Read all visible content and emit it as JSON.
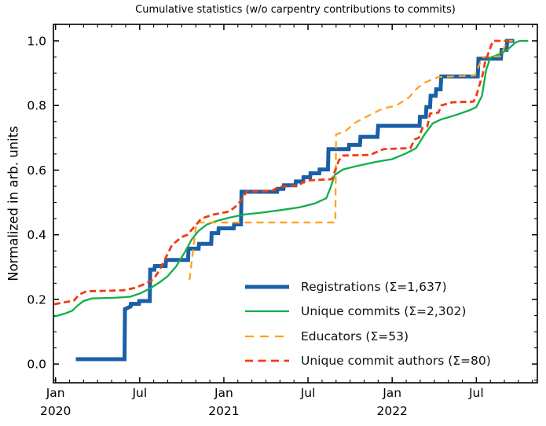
{
  "chart_data": {
    "type": "line",
    "title": "Cumulative statistics (w/o carpentry contributions to commits)",
    "xlabel": "",
    "ylabel": "Normalized in arb. units",
    "x_unit": "months since Jan 2020",
    "xlim": [
      -0.15,
      34.35
    ],
    "ylim": [
      -0.058,
      1.051
    ],
    "grid": false,
    "tick_style": "inward ticks on all four sides; minor ticks monthly on x and every 0.05 on y",
    "legend_position": "lower right inside, no frame",
    "xticks": [
      {
        "m": 0,
        "label": "Jan",
        "year": "2020"
      },
      {
        "m": 6,
        "label": "Jul",
        "year": ""
      },
      {
        "m": 12,
        "label": "Jan",
        "year": "2021"
      },
      {
        "m": 18,
        "label": "Jul",
        "year": ""
      },
      {
        "m": 24,
        "label": "Jan",
        "year": "2022"
      },
      {
        "m": 30,
        "label": "Jul",
        "year": ""
      }
    ],
    "xminor_step": 1,
    "yticks": [
      {
        "v": 0.0,
        "label": "0.0"
      },
      {
        "v": 0.2,
        "label": "0.2"
      },
      {
        "v": 0.4,
        "label": "0.4"
      },
      {
        "v": 0.6,
        "label": "0.6"
      },
      {
        "v": 0.8,
        "label": "0.8"
      },
      {
        "v": 1.0,
        "label": "1.0"
      }
    ],
    "yminor_step": 0.05,
    "series": [
      {
        "name": "Registrations  (Σ=1,637)",
        "color": "#1b5fa6",
        "width": 5,
        "dash": null,
        "points": [
          [
            1.45,
            0.015
          ],
          [
            4.92,
            0.015
          ],
          [
            4.95,
            0.17
          ],
          [
            5.35,
            0.178
          ],
          [
            5.37,
            0.186
          ],
          [
            5.95,
            0.186
          ],
          [
            5.97,
            0.195
          ],
          [
            6.72,
            0.195
          ],
          [
            6.75,
            0.292
          ],
          [
            7.05,
            0.292
          ],
          [
            7.08,
            0.303
          ],
          [
            7.85,
            0.303
          ],
          [
            7.88,
            0.322
          ],
          [
            9.45,
            0.322
          ],
          [
            9.48,
            0.357
          ],
          [
            10.2,
            0.357
          ],
          [
            10.23,
            0.372
          ],
          [
            11.1,
            0.372
          ],
          [
            11.13,
            0.405
          ],
          [
            11.6,
            0.405
          ],
          [
            11.63,
            0.42
          ],
          [
            12.7,
            0.42
          ],
          [
            12.73,
            0.432
          ],
          [
            13.22,
            0.432
          ],
          [
            13.26,
            0.533
          ],
          [
            15.8,
            0.533
          ],
          [
            15.83,
            0.542
          ],
          [
            16.25,
            0.542
          ],
          [
            16.28,
            0.553
          ],
          [
            17.1,
            0.553
          ],
          [
            17.13,
            0.565
          ],
          [
            17.65,
            0.565
          ],
          [
            17.68,
            0.578
          ],
          [
            18.15,
            0.578
          ],
          [
            18.18,
            0.59
          ],
          [
            18.8,
            0.59
          ],
          [
            18.83,
            0.602
          ],
          [
            19.42,
            0.602
          ],
          [
            19.46,
            0.665
          ],
          [
            20.9,
            0.665
          ],
          [
            20.93,
            0.678
          ],
          [
            21.7,
            0.678
          ],
          [
            21.74,
            0.703
          ],
          [
            22.95,
            0.703
          ],
          [
            23.0,
            0.737
          ],
          [
            25.95,
            0.737
          ],
          [
            25.98,
            0.765
          ],
          [
            26.4,
            0.765
          ],
          [
            26.44,
            0.795
          ],
          [
            26.7,
            0.795
          ],
          [
            26.74,
            0.83
          ],
          [
            27.1,
            0.83
          ],
          [
            27.14,
            0.85
          ],
          [
            27.45,
            0.85
          ],
          [
            27.5,
            0.89
          ],
          [
            30.1,
            0.89
          ],
          [
            30.15,
            0.945
          ],
          [
            31.75,
            0.945
          ],
          [
            31.8,
            0.972
          ],
          [
            32.15,
            0.972
          ],
          [
            32.2,
            1.0
          ],
          [
            32.7,
            1.0
          ]
        ]
      },
      {
        "name": "Unique commits (Σ=2,302)",
        "color": "#12ad4a",
        "width": 2.3,
        "dash": null,
        "points": [
          [
            -0.1,
            0.147
          ],
          [
            0.6,
            0.155
          ],
          [
            1.2,
            0.165
          ],
          [
            1.6,
            0.182
          ],
          [
            2.0,
            0.195
          ],
          [
            2.6,
            0.203
          ],
          [
            4.2,
            0.205
          ],
          [
            5.3,
            0.208
          ],
          [
            6.0,
            0.218
          ],
          [
            6.7,
            0.233
          ],
          [
            7.4,
            0.252
          ],
          [
            8.0,
            0.272
          ],
          [
            8.6,
            0.302
          ],
          [
            9.2,
            0.345
          ],
          [
            9.7,
            0.385
          ],
          [
            10.2,
            0.412
          ],
          [
            10.8,
            0.432
          ],
          [
            11.5,
            0.443
          ],
          [
            12.4,
            0.453
          ],
          [
            13.5,
            0.463
          ],
          [
            14.6,
            0.468
          ],
          [
            16.0,
            0.476
          ],
          [
            17.4,
            0.485
          ],
          [
            18.5,
            0.497
          ],
          [
            19.3,
            0.513
          ],
          [
            19.6,
            0.545
          ],
          [
            19.9,
            0.585
          ],
          [
            20.5,
            0.602
          ],
          [
            21.6,
            0.614
          ],
          [
            22.8,
            0.625
          ],
          [
            24.0,
            0.634
          ],
          [
            25.0,
            0.652
          ],
          [
            25.7,
            0.668
          ],
          [
            26.3,
            0.71
          ],
          [
            26.9,
            0.745
          ],
          [
            27.5,
            0.757
          ],
          [
            28.5,
            0.77
          ],
          [
            29.5,
            0.785
          ],
          [
            30.0,
            0.795
          ],
          [
            30.4,
            0.83
          ],
          [
            30.7,
            0.91
          ],
          [
            31.0,
            0.948
          ],
          [
            31.6,
            0.958
          ],
          [
            32.2,
            0.972
          ],
          [
            32.8,
            0.995
          ],
          [
            33.1,
            1.0
          ],
          [
            33.7,
            1.0
          ]
        ]
      },
      {
        "name": "Educators (Σ=53)",
        "color": "#ffa21f",
        "width": 2.3,
        "dash": [
          9,
          6
        ],
        "points": [
          [
            9.55,
            0.26
          ],
          [
            9.8,
            0.35
          ],
          [
            10.05,
            0.438
          ],
          [
            19.95,
            0.438
          ],
          [
            20.0,
            0.71
          ],
          [
            20.7,
            0.722
          ],
          [
            21.4,
            0.748
          ],
          [
            22.3,
            0.768
          ],
          [
            23.3,
            0.79
          ],
          [
            24.3,
            0.8
          ],
          [
            25.2,
            0.825
          ],
          [
            25.7,
            0.85
          ],
          [
            26.2,
            0.868
          ],
          [
            26.8,
            0.88
          ],
          [
            27.3,
            0.888
          ],
          [
            29.9,
            0.893
          ],
          [
            30.25,
            0.93
          ],
          [
            30.5,
            0.95
          ],
          [
            31.7,
            0.952
          ],
          [
            31.95,
            0.975
          ],
          [
            32.15,
            1.0
          ],
          [
            32.6,
            1.0
          ]
        ]
      },
      {
        "name": "Unique commit authors (Σ=80)",
        "color": "#f13b14",
        "width": 2.8,
        "dash": [
          8,
          4.5
        ],
        "points": [
          [
            -0.1,
            0.185
          ],
          [
            0.5,
            0.19
          ],
          [
            1.3,
            0.196
          ],
          [
            1.7,
            0.215
          ],
          [
            2.2,
            0.225
          ],
          [
            4.8,
            0.228
          ],
          [
            5.6,
            0.235
          ],
          [
            6.4,
            0.248
          ],
          [
            7.0,
            0.263
          ],
          [
            7.4,
            0.29
          ],
          [
            7.8,
            0.324
          ],
          [
            8.3,
            0.368
          ],
          [
            9.0,
            0.393
          ],
          [
            9.4,
            0.4
          ],
          [
            9.9,
            0.425
          ],
          [
            10.4,
            0.45
          ],
          [
            11.2,
            0.462
          ],
          [
            12.4,
            0.472
          ],
          [
            12.9,
            0.49
          ],
          [
            13.3,
            0.51
          ],
          [
            13.6,
            0.533
          ],
          [
            15.4,
            0.535
          ],
          [
            15.9,
            0.548
          ],
          [
            17.3,
            0.553
          ],
          [
            17.9,
            0.568
          ],
          [
            19.7,
            0.572
          ],
          [
            20.2,
            0.63
          ],
          [
            20.5,
            0.645
          ],
          [
            22.4,
            0.647
          ],
          [
            23.4,
            0.665
          ],
          [
            25.3,
            0.668
          ],
          [
            25.6,
            0.695
          ],
          [
            25.9,
            0.7
          ],
          [
            26.15,
            0.73
          ],
          [
            26.5,
            0.735
          ],
          [
            26.7,
            0.775
          ],
          [
            27.3,
            0.778
          ],
          [
            27.5,
            0.8
          ],
          [
            27.9,
            0.805
          ],
          [
            28.3,
            0.81
          ],
          [
            29.8,
            0.812
          ],
          [
            30.0,
            0.83
          ],
          [
            30.2,
            0.86
          ],
          [
            30.45,
            0.895
          ],
          [
            30.6,
            0.93
          ],
          [
            30.8,
            0.955
          ],
          [
            31.05,
            0.985
          ],
          [
            31.2,
            1.0
          ],
          [
            32.35,
            1.0
          ]
        ]
      }
    ]
  }
}
